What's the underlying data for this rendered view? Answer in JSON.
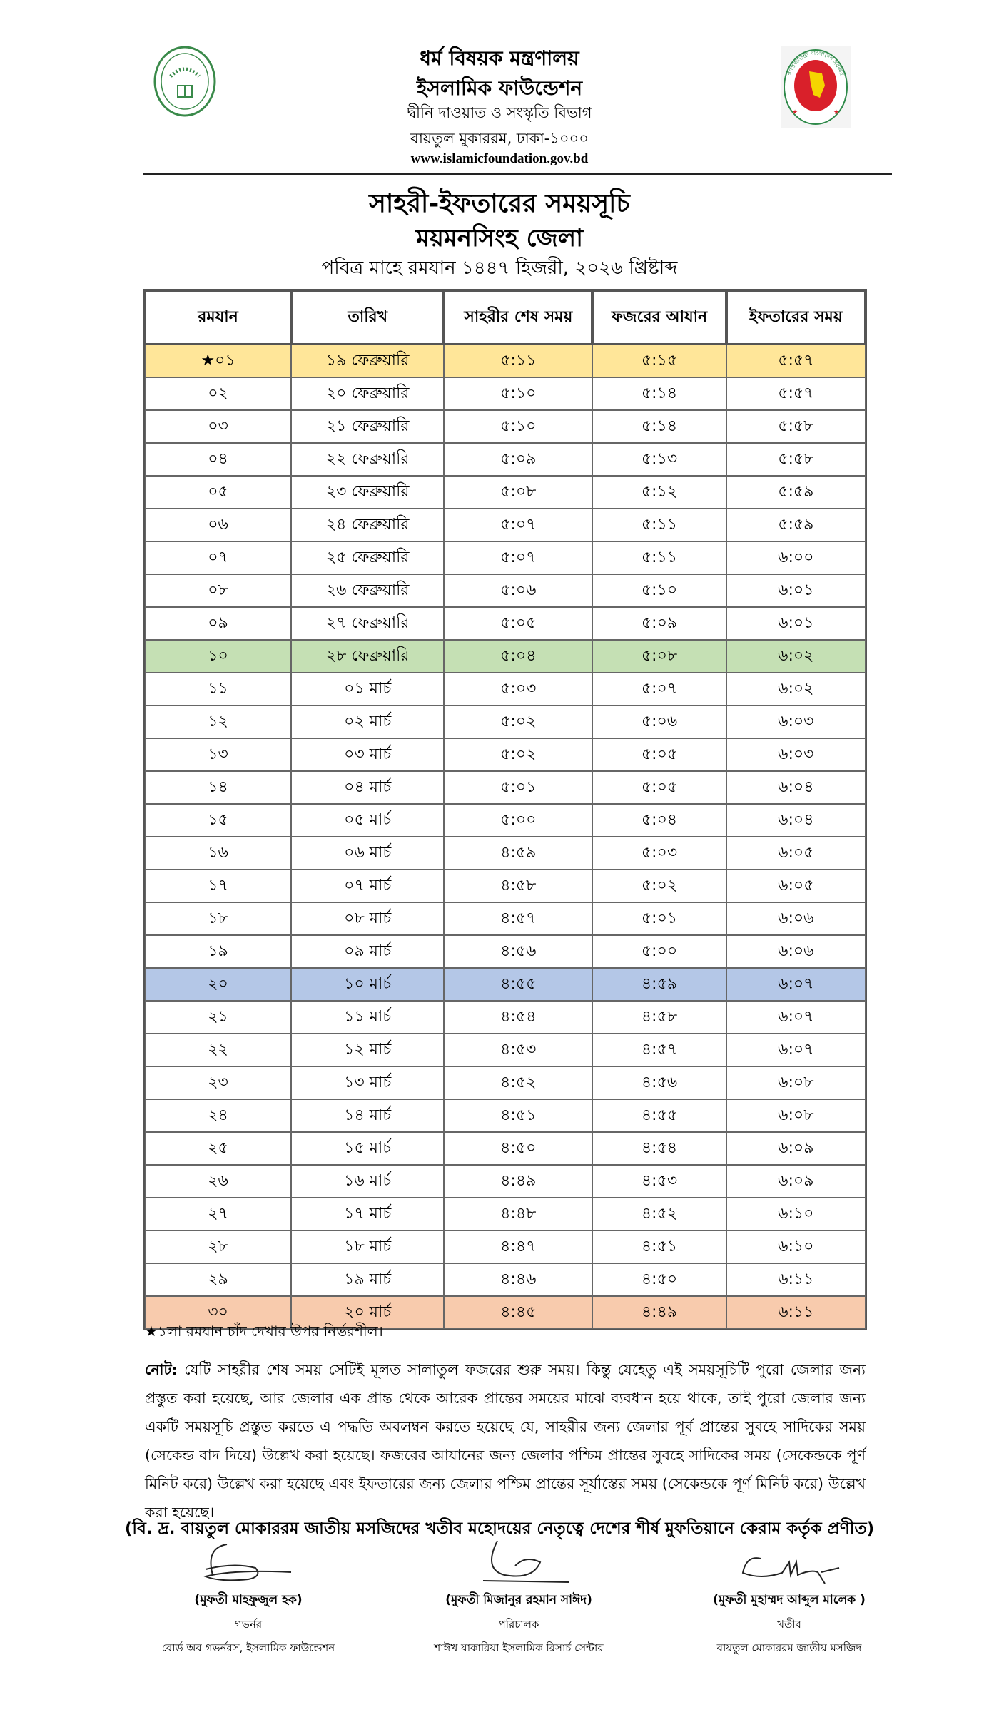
{
  "header": {
    "ministry": "ধর্ম বিষয়ক মন্ত্রণালয়",
    "organization": "ইসলামিক ফাউন্ডেশন",
    "department": "দ্বীনি দাওয়াত ও সংস্কৃতি বিভাগ",
    "address": "বায়তুল মুকাররম, ঢাকা-১০০০",
    "website": "www.islamicfoundation.gov.bd",
    "left_logo": "islamic-foundation-emblem",
    "right_logo": "government-of-bangladesh-seal",
    "right_logo_text": "গণপ্রজাতন্ত্রী বাংলাদেশ সরকার"
  },
  "title": {
    "main": "সাহরী-ইফতারের সময়সূচি",
    "district": "ময়মনসিংহ জেলা",
    "subtitle": "পবিত্র মাহে রমযান ১৪৪৭ হিজরী, ২০২৬ খ্রিষ্টাব্দ"
  },
  "table": {
    "columns": [
      "রমযান",
      "তারিখ",
      "সাহরীর শেষ সময়",
      "ফজরের আযান",
      "ইফতারের সময়"
    ],
    "highlight_colors": {
      "1": "#FFE699",
      "10": "#C5E0B4",
      "20": "#B4C7E7",
      "30": "#F8CBAD"
    },
    "rows": [
      [
        "★০১",
        "১৯ ফেব্রুয়ারি",
        "৫:১১",
        "৫:১৫",
        "৫:৫৭"
      ],
      [
        "০২",
        "২০ ফেব্রুয়ারি",
        "৫:১০",
        "৫:১৪",
        "৫:৫৭"
      ],
      [
        "০৩",
        "২১ ফেব্রুয়ারি",
        "৫:১০",
        "৫:১৪",
        "৫:৫৮"
      ],
      [
        "০৪",
        "২২ ফেব্রুয়ারি",
        "৫:০৯",
        "৫:১৩",
        "৫:৫৮"
      ],
      [
        "০৫",
        "২৩ ফেব্রুয়ারি",
        "৫:০৮",
        "৫:১২",
        "৫:৫৯"
      ],
      [
        "০৬",
        "২৪ ফেব্রুয়ারি",
        "৫:০৭",
        "৫:১১",
        "৫:৫৯"
      ],
      [
        "০৭",
        "২৫ ফেব্রুয়ারি",
        "৫:০৭",
        "৫:১১",
        "৬:০০"
      ],
      [
        "০৮",
        "২৬ ফেব্রুয়ারি",
        "৫:০৬",
        "৫:১০",
        "৬:০১"
      ],
      [
        "০৯",
        "২৭ ফেব্রুয়ারি",
        "৫:০৫",
        "৫:০৯",
        "৬:০১"
      ],
      [
        "১০",
        "২৮ ফেব্রুয়ারি",
        "৫:০৪",
        "৫:০৮",
        "৬:০২"
      ],
      [
        "১১",
        "০১ মার্চ",
        "৫:০৩",
        "৫:০৭",
        "৬:০২"
      ],
      [
        "১২",
        "০২ মার্চ",
        "৫:০২",
        "৫:০৬",
        "৬:০৩"
      ],
      [
        "১৩",
        "০৩ মার্চ",
        "৫:০২",
        "৫:০৫",
        "৬:০৩"
      ],
      [
        "১৪",
        "০৪ মার্চ",
        "৫:০১",
        "৫:০৫",
        "৬:০৪"
      ],
      [
        "১৫",
        "০৫ মার্চ",
        "৫:০০",
        "৫:০৪",
        "৬:০৪"
      ],
      [
        "১৬",
        "০৬ মার্চ",
        "৪:৫৯",
        "৫:০৩",
        "৬:০৫"
      ],
      [
        "১৭",
        "০৭ মার্চ",
        "৪:৫৮",
        "৫:০২",
        "৬:০৫"
      ],
      [
        "১৮",
        "০৮ মার্চ",
        "৪:৫৭",
        "৫:০১",
        "৬:০৬"
      ],
      [
        "১৯",
        "০৯ মার্চ",
        "৪:৫৬",
        "৫:০০",
        "৬:০৬"
      ],
      [
        "২০",
        "১০ মার্চ",
        "৪:৫৫",
        "৪:৫৯",
        "৬:০৭"
      ],
      [
        "২১",
        "১১ মার্চ",
        "৪:৫৪",
        "৪:৫৮",
        "৬:০৭"
      ],
      [
        "২২",
        "১২ মার্চ",
        "৪:৫৩",
        "৪:৫৭",
        "৬:০৭"
      ],
      [
        "২৩",
        "১৩ মার্চ",
        "৪:৫২",
        "৪:৫৬",
        "৬:০৮"
      ],
      [
        "২৪",
        "১৪ মার্চ",
        "৪:৫১",
        "৪:৫৫",
        "৬:০৮"
      ],
      [
        "২৫",
        "১৫ মার্চ",
        "৪:৫০",
        "৪:৫৪",
        "৬:০৯"
      ],
      [
        "২৬",
        "১৬ মার্চ",
        "৪:৪৯",
        "৪:৫৩",
        "৬:০৯"
      ],
      [
        "২৭",
        "১৭ মার্চ",
        "৪:৪৮",
        "৪:৫২",
        "৬:১০"
      ],
      [
        "২৮",
        "১৮ মার্চ",
        "৪:৪৭",
        "৪:৫১",
        "৬:১০"
      ],
      [
        "২৯",
        "১৯ মার্চ",
        "৪:৪৬",
        "৪:৫০",
        "৬:১১"
      ],
      [
        "৩০",
        "২০ মার্চ",
        "৪:৪৫",
        "৪:৪৯",
        "৬:১১"
      ]
    ]
  },
  "footnote": "★১লা রমযান চাঁদ দেখার উপর নির্ভরশীল।",
  "note": {
    "label": "নোট:",
    "text": " যেটি সাহরীর শেষ সময় সেটিই মূলত সালাতুল ফজরের শুরু সময়। কিন্তু যেহেতু এই সময়সূচিটি পুরো জেলার জন্য প্রস্তুত করা হয়েছে, আর জেলার এক প্রান্ত থেকে আরেক প্রান্তের সময়ের মাঝে ব্যবধান হয়ে থাকে, তাই পুরো জেলার জন্য একটি সময়সূচি প্রস্তুত করতে এ পদ্ধতি অবলম্বন করতে হয়েছে যে, সাহরীর জন্য জেলার পূর্ব প্রান্তের সুবহে সাদিকের সময় (সেকেন্ড বাদ দিয়ে) উল্লেখ করা হয়েছে। ফজরের আযানের জন্য জেলার পশ্চিম প্রান্তের সুবহে সাদিকের সময় (সেকেন্ডকে পূর্ণ মিনিট করে) উল্লেখ করা হয়েছে এবং ইফতারের জন্য জেলার পশ্চিম প্রান্তের সূর্যাস্তের সময় (সেকেন্ডকে পূর্ণ মিনিট করে) উল্লেখ করা হয়েছে।"
  },
  "credit": "(বি. দ্র. বায়তুল মোকাররম জাতীয় মসজিদের খতীব মহোদয়ের নেতৃত্বে দেশের শীর্ষ মুফতিয়ানে কেরাম কর্তৃক প্রণীত)",
  "signatories": [
    {
      "name": "(মুফতী মাহফুজুল হক)",
      "role": "গভর্নর",
      "org": "বোর্ড অব গভর্নরস, ইসলামিক ফাউন্ডেশন"
    },
    {
      "name": "(মুফতী মিজানুর রহমান সাঈদ)",
      "role": "পরিচালক",
      "org": "শাঈখ যাকারিয়া ইসলামিক রিসার্চ সেন্টার"
    },
    {
      "name": "(মুফতী মুহাম্মদ আব্দুল মালেক )",
      "role": "খতীব",
      "org": "বায়তুল মোকাররম জাতীয় মসজিদ"
    }
  ]
}
